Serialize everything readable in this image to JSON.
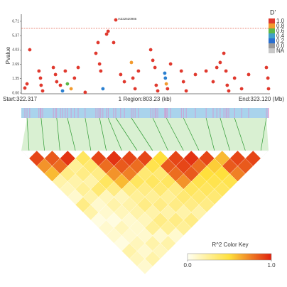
{
  "chart_data": {
    "type": "scatter",
    "y_label": "Pvalue",
    "xlim": [
      322.317,
      323.12
    ],
    "ylim": [
      0,
      7.2
    ],
    "yticks": [
      {
        "value": 0,
        "label": "0.00"
      },
      1.35,
      2.69,
      4.03,
      5.37,
      6.71
    ],
    "threshold": 6.05,
    "threshold_color": "#e0442c",
    "top_snp_label": "rs322620985",
    "x": [
      322.324,
      322.331,
      322.34,
      322.37,
      322.375,
      322.377,
      322.382,
      322.417,
      322.424,
      322.428,
      322.44,
      322.447,
      322.456,
      322.463,
      322.475,
      322.486,
      322.498,
      322.521,
      322.556,
      322.563,
      322.568,
      322.572,
      322.579,
      322.591,
      322.596,
      322.614,
      322.621,
      322.637,
      322.649,
      322.672,
      322.677,
      322.684,
      322.695,
      322.735,
      322.742,
      322.749,
      322.753,
      322.758,
      322.781,
      322.783,
      322.786,
      322.79,
      322.8,
      322.835,
      322.842,
      322.851,
      322.881,
      322.916,
      322.939,
      322.951,
      322.962,
      322.974,
      322.981,
      322.985,
      322.99,
      323.009,
      323.032,
      323.055,
      323.113,
      323.118,
      323.12
    ],
    "values": [
      0.47,
      0.86,
      4.05,
      2.06,
      1.4,
      0.73,
      0.2,
      2.39,
      1.73,
      1.06,
      0.73,
      0.2,
      2.06,
      0.86,
      0.4,
      1.4,
      2.39,
      0.07,
      3.72,
      4.72,
      2.72,
      2.06,
      0.4,
      5.51,
      5.78,
      4.72,
      6.84,
      1.73,
      1.06,
      2.86,
      1.4,
      0.4,
      2.06,
      4.05,
      3.06,
      2.39,
      0.73,
      0.2,
      1.86,
      1.4,
      0.86,
      0.4,
      2.72,
      2.06,
      1.06,
      0.2,
      1.73,
      2.06,
      1.06,
      2.39,
      2.86,
      3.72,
      2.06,
      0.73,
      0.2,
      1.4,
      0.4,
      1.73,
      2.39,
      1.4,
      0.4
    ],
    "point_colors": [
      "#e0392e",
      "#e0392e",
      "#e0392e",
      "#e0392e",
      "#e0392e",
      "#e0392e",
      "#e0392e",
      "#e0392e",
      "#e0392e",
      "#e0392e",
      "#e0392e",
      "#2a7fd0",
      "#e0392e",
      "#5cb848",
      "#f29a2e",
      "#e0392e",
      "#e0392e",
      "#e0392e",
      "#e0392e",
      "#e0392e",
      "#e0392e",
      "#e0392e",
      "#2a7fd0",
      "#e0392e",
      "#e0392e",
      "#e0392e",
      "#e0392e",
      "#e0392e",
      "#e0392e",
      "#f29a2e",
      "#e0392e",
      "#e0392e",
      "#e0392e",
      "#e0392e",
      "#e0392e",
      "#e0392e",
      "#e0392e",
      "#e0392e",
      "#2a7fd0",
      "#2a7fd0",
      "#f29a2e",
      "#e0392e",
      "#e0392e",
      "#e0392e",
      "#e0392e",
      "#e0392e",
      "#e0392e",
      "#e0392e",
      "#e0392e",
      "#e0392e",
      "#e0392e",
      "#e0392e",
      "#e0392e",
      "#e0392e",
      "#e0392e",
      "#e0392e",
      "#e0392e",
      "#e0392e",
      "#e0392e",
      "#e0392e",
      "#e0392e"
    ],
    "legend": {
      "title": "D'",
      "items": [
        {
          "value": 1,
          "label": "1.0",
          "color": "#e0392e"
        },
        {
          "value": 0.8,
          "label": "0.8",
          "color": "#f29a2e"
        },
        {
          "value": 0.6,
          "label": "0.6",
          "color": "#5cb848"
        },
        {
          "value": 0.4,
          "label": "0.4",
          "color": "#3fa0c8"
        },
        {
          "value": 0.2,
          "label": "0.2",
          "color": "#2a6fd0"
        },
        {
          "value": 0,
          "label": "0.0",
          "color": "#9a9a9a"
        },
        {
          "value": null,
          "label": "NA",
          "color": "#c8c8c8"
        }
      ]
    },
    "start_label": "Start:322.317",
    "region_label": "1 Region:803.23 (kb)",
    "end_label": "End:323.120 (Mb)",
    "heatmap": {
      "positions": [
        322.331,
        322.377,
        322.428,
        322.463,
        322.521,
        322.568,
        322.596,
        322.621,
        322.672,
        322.742,
        322.786,
        322.842,
        322.916,
        322.962,
        323.009,
        323.113
      ],
      "r2": [
        [
          0.9
        ],
        [
          0.7,
          0.85
        ],
        [
          0.6,
          0.8,
          0.95
        ],
        [
          0.2,
          0.3,
          0.25,
          0.4
        ],
        [
          0.15,
          0.2,
          0.3,
          0.35,
          0.9
        ],
        [
          0.1,
          0.25,
          0.2,
          0.3,
          0.8,
          0.95
        ],
        [
          0.3,
          0.2,
          0.35,
          0.4,
          0.7,
          0.85,
          0.9
        ],
        [
          0.2,
          0.1,
          0.15,
          0.3,
          0.6,
          0.75,
          0.8,
          0.9
        ],
        [
          0.05,
          0.1,
          0.2,
          0.15,
          0.3,
          0.4,
          0.35,
          0.45,
          0.5
        ],
        [
          0.1,
          0.05,
          0.15,
          0.2,
          0.25,
          0.3,
          0.4,
          0.35,
          0.85,
          0.9
        ],
        [
          0.1,
          0.15,
          0.1,
          0.2,
          0.3,
          0.25,
          0.35,
          0.4,
          0.8,
          0.9,
          0.95
        ],
        [
          0.05,
          0.1,
          0.1,
          0.15,
          0.2,
          0.3,
          0.25,
          0.3,
          0.7,
          0.85,
          0.8,
          0.9
        ],
        [
          0.2,
          0.15,
          0.1,
          0.25,
          0.3,
          0.2,
          0.3,
          0.35,
          0.4,
          0.45,
          0.5,
          0.55,
          0.6
        ],
        [
          0.15,
          0.1,
          0.2,
          0.1,
          0.25,
          0.3,
          0.2,
          0.3,
          0.35,
          0.4,
          0.45,
          0.5,
          0.85,
          0.9
        ],
        [
          0.1,
          0.2,
          0.15,
          0.2,
          0.1,
          0.25,
          0.3,
          0.2,
          0.3,
          0.35,
          0.4,
          0.45,
          0.75,
          0.85,
          0.9
        ]
      ],
      "colors": [
        "#fffff2",
        "#ffe03c",
        "#e0200e"
      ],
      "key_title": "R^2 Color Key",
      "key_ticks": [
        {
          "value": 0,
          "label": "0.0"
        },
        {
          "value": 1,
          "label": "1.0"
        }
      ]
    }
  }
}
